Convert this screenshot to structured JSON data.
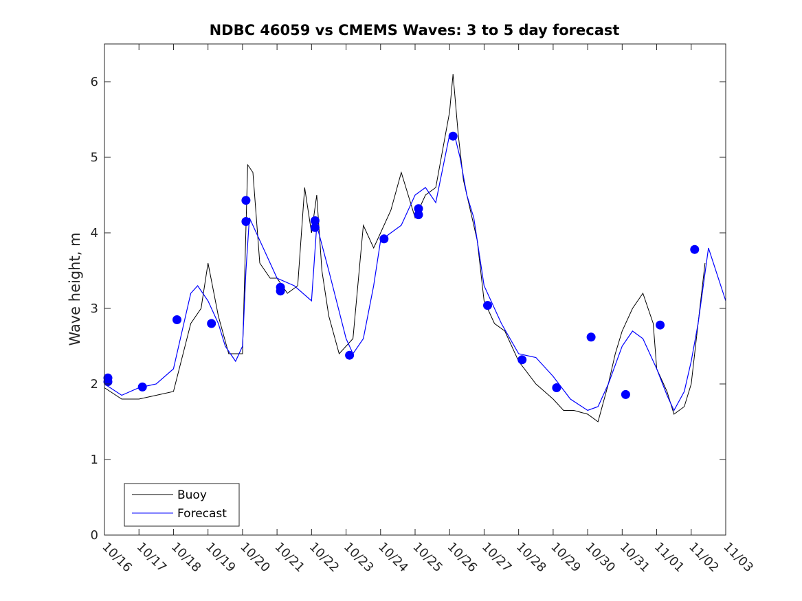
{
  "chart_data": {
    "type": "line",
    "title": "NDBC 46059 vs CMEMS Waves: 3 to 5 day forecast",
    "xlabel": "",
    "ylabel": "Wave height, m",
    "xlim": [
      0,
      18
    ],
    "ylim": [
      0,
      6.5
    ],
    "x_ticks": [
      "10/16",
      "10/17",
      "10/18",
      "10/19",
      "10/20",
      "10/21",
      "10/22",
      "10/23",
      "10/24",
      "10/25",
      "10/26",
      "10/27",
      "10/28",
      "10/29",
      "10/30",
      "10/31",
      "11/01",
      "11/02",
      "11/03"
    ],
    "y_ticks": [
      0,
      1,
      2,
      3,
      4,
      5,
      6
    ],
    "legend": {
      "position": "bottom-left",
      "entries": [
        "Buoy",
        "Forecast"
      ]
    },
    "colors": {
      "buoy": "#000000",
      "forecast": "#0000ff",
      "axes": "#262626"
    },
    "series": [
      {
        "name": "Buoy",
        "x": [
          0,
          0.5,
          1,
          1.5,
          2,
          2.5,
          2.8,
          3,
          3.3,
          3.6,
          4,
          4.15,
          4.3,
          4.5,
          4.8,
          5,
          5.3,
          5.6,
          5.8,
          6,
          6.15,
          6.3,
          6.5,
          6.8,
          7,
          7.2,
          7.5,
          7.8,
          8,
          8.3,
          8.6,
          9,
          9.3,
          9.6,
          10,
          10.1,
          10.25,
          10.4,
          10.6,
          10.8,
          11,
          11.3,
          11.6,
          12,
          12.5,
          13,
          13.3,
          13.6,
          14,
          14.3,
          14.6,
          14.8,
          15,
          15.3,
          15.6,
          15.9,
          16,
          16.3,
          16.5,
          16.8,
          17,
          17.2,
          17.4
        ],
        "y": [
          1.95,
          1.8,
          1.8,
          1.85,
          1.9,
          2.8,
          3.0,
          3.6,
          2.9,
          2.4,
          2.4,
          4.9,
          4.8,
          3.6,
          3.4,
          3.4,
          3.2,
          3.3,
          4.6,
          4.0,
          4.5,
          3.5,
          2.9,
          2.4,
          2.5,
          2.6,
          4.1,
          3.8,
          4.0,
          4.3,
          4.8,
          4.2,
          4.5,
          4.6,
          5.6,
          6.1,
          5.3,
          4.7,
          4.3,
          3.9,
          3.1,
          2.8,
          2.7,
          2.3,
          2.0,
          1.8,
          1.65,
          1.65,
          1.6,
          1.5,
          2.0,
          2.4,
          2.7,
          3.0,
          3.2,
          2.8,
          2.2,
          1.9,
          1.6,
          1.7,
          2.0,
          2.8,
          3.6
        ]
      },
      {
        "name": "Forecast",
        "x": [
          0,
          0.5,
          1,
          1.5,
          2,
          2.3,
          2.5,
          2.7,
          3,
          3.3,
          3.5,
          3.8,
          4,
          4.1,
          4.2,
          4.5,
          5,
          5.5,
          6,
          6.15,
          6.5,
          7,
          7.2,
          7.5,
          7.8,
          8,
          8.3,
          8.6,
          9,
          9.3,
          9.6,
          10,
          10.15,
          10.3,
          10.5,
          10.7,
          11,
          11.5,
          12,
          12.5,
          13,
          13.5,
          14,
          14.3,
          14.6,
          15,
          15.3,
          15.6,
          16,
          16.3,
          16.5,
          16.8,
          17,
          17.2,
          17.5,
          18
        ],
        "y": [
          2.0,
          1.85,
          1.95,
          2.0,
          2.2,
          2.8,
          3.2,
          3.3,
          3.1,
          2.8,
          2.5,
          2.3,
          2.5,
          3.5,
          4.2,
          3.9,
          3.4,
          3.3,
          3.1,
          4.1,
          3.5,
          2.6,
          2.4,
          2.6,
          3.3,
          3.9,
          4.0,
          4.1,
          4.5,
          4.6,
          4.4,
          5.3,
          5.28,
          5.0,
          4.5,
          4.2,
          3.3,
          2.8,
          2.4,
          2.35,
          2.1,
          1.8,
          1.65,
          1.7,
          2.0,
          2.5,
          2.7,
          2.6,
          2.2,
          1.85,
          1.65,
          1.9,
          2.3,
          2.8,
          3.8,
          3.1
        ]
      },
      {
        "name": "Forecast points",
        "x": [
          0.1,
          0.1,
          1.1,
          2.1,
          3.1,
          4.1,
          4.1,
          5.1,
          5.1,
          6.1,
          6.1,
          7.1,
          8.1,
          9.1,
          9.1,
          10.1,
          11.1,
          12.1,
          13.1,
          14.1,
          15.1,
          16.1,
          17.1
        ],
        "y": [
          2.08,
          2.03,
          1.96,
          2.85,
          2.8,
          4.43,
          4.15,
          3.28,
          3.23,
          4.16,
          4.07,
          2.38,
          3.92,
          4.32,
          4.24,
          5.28,
          3.04,
          2.32,
          1.95,
          2.62,
          1.86,
          2.78,
          3.78
        ]
      }
    ]
  }
}
